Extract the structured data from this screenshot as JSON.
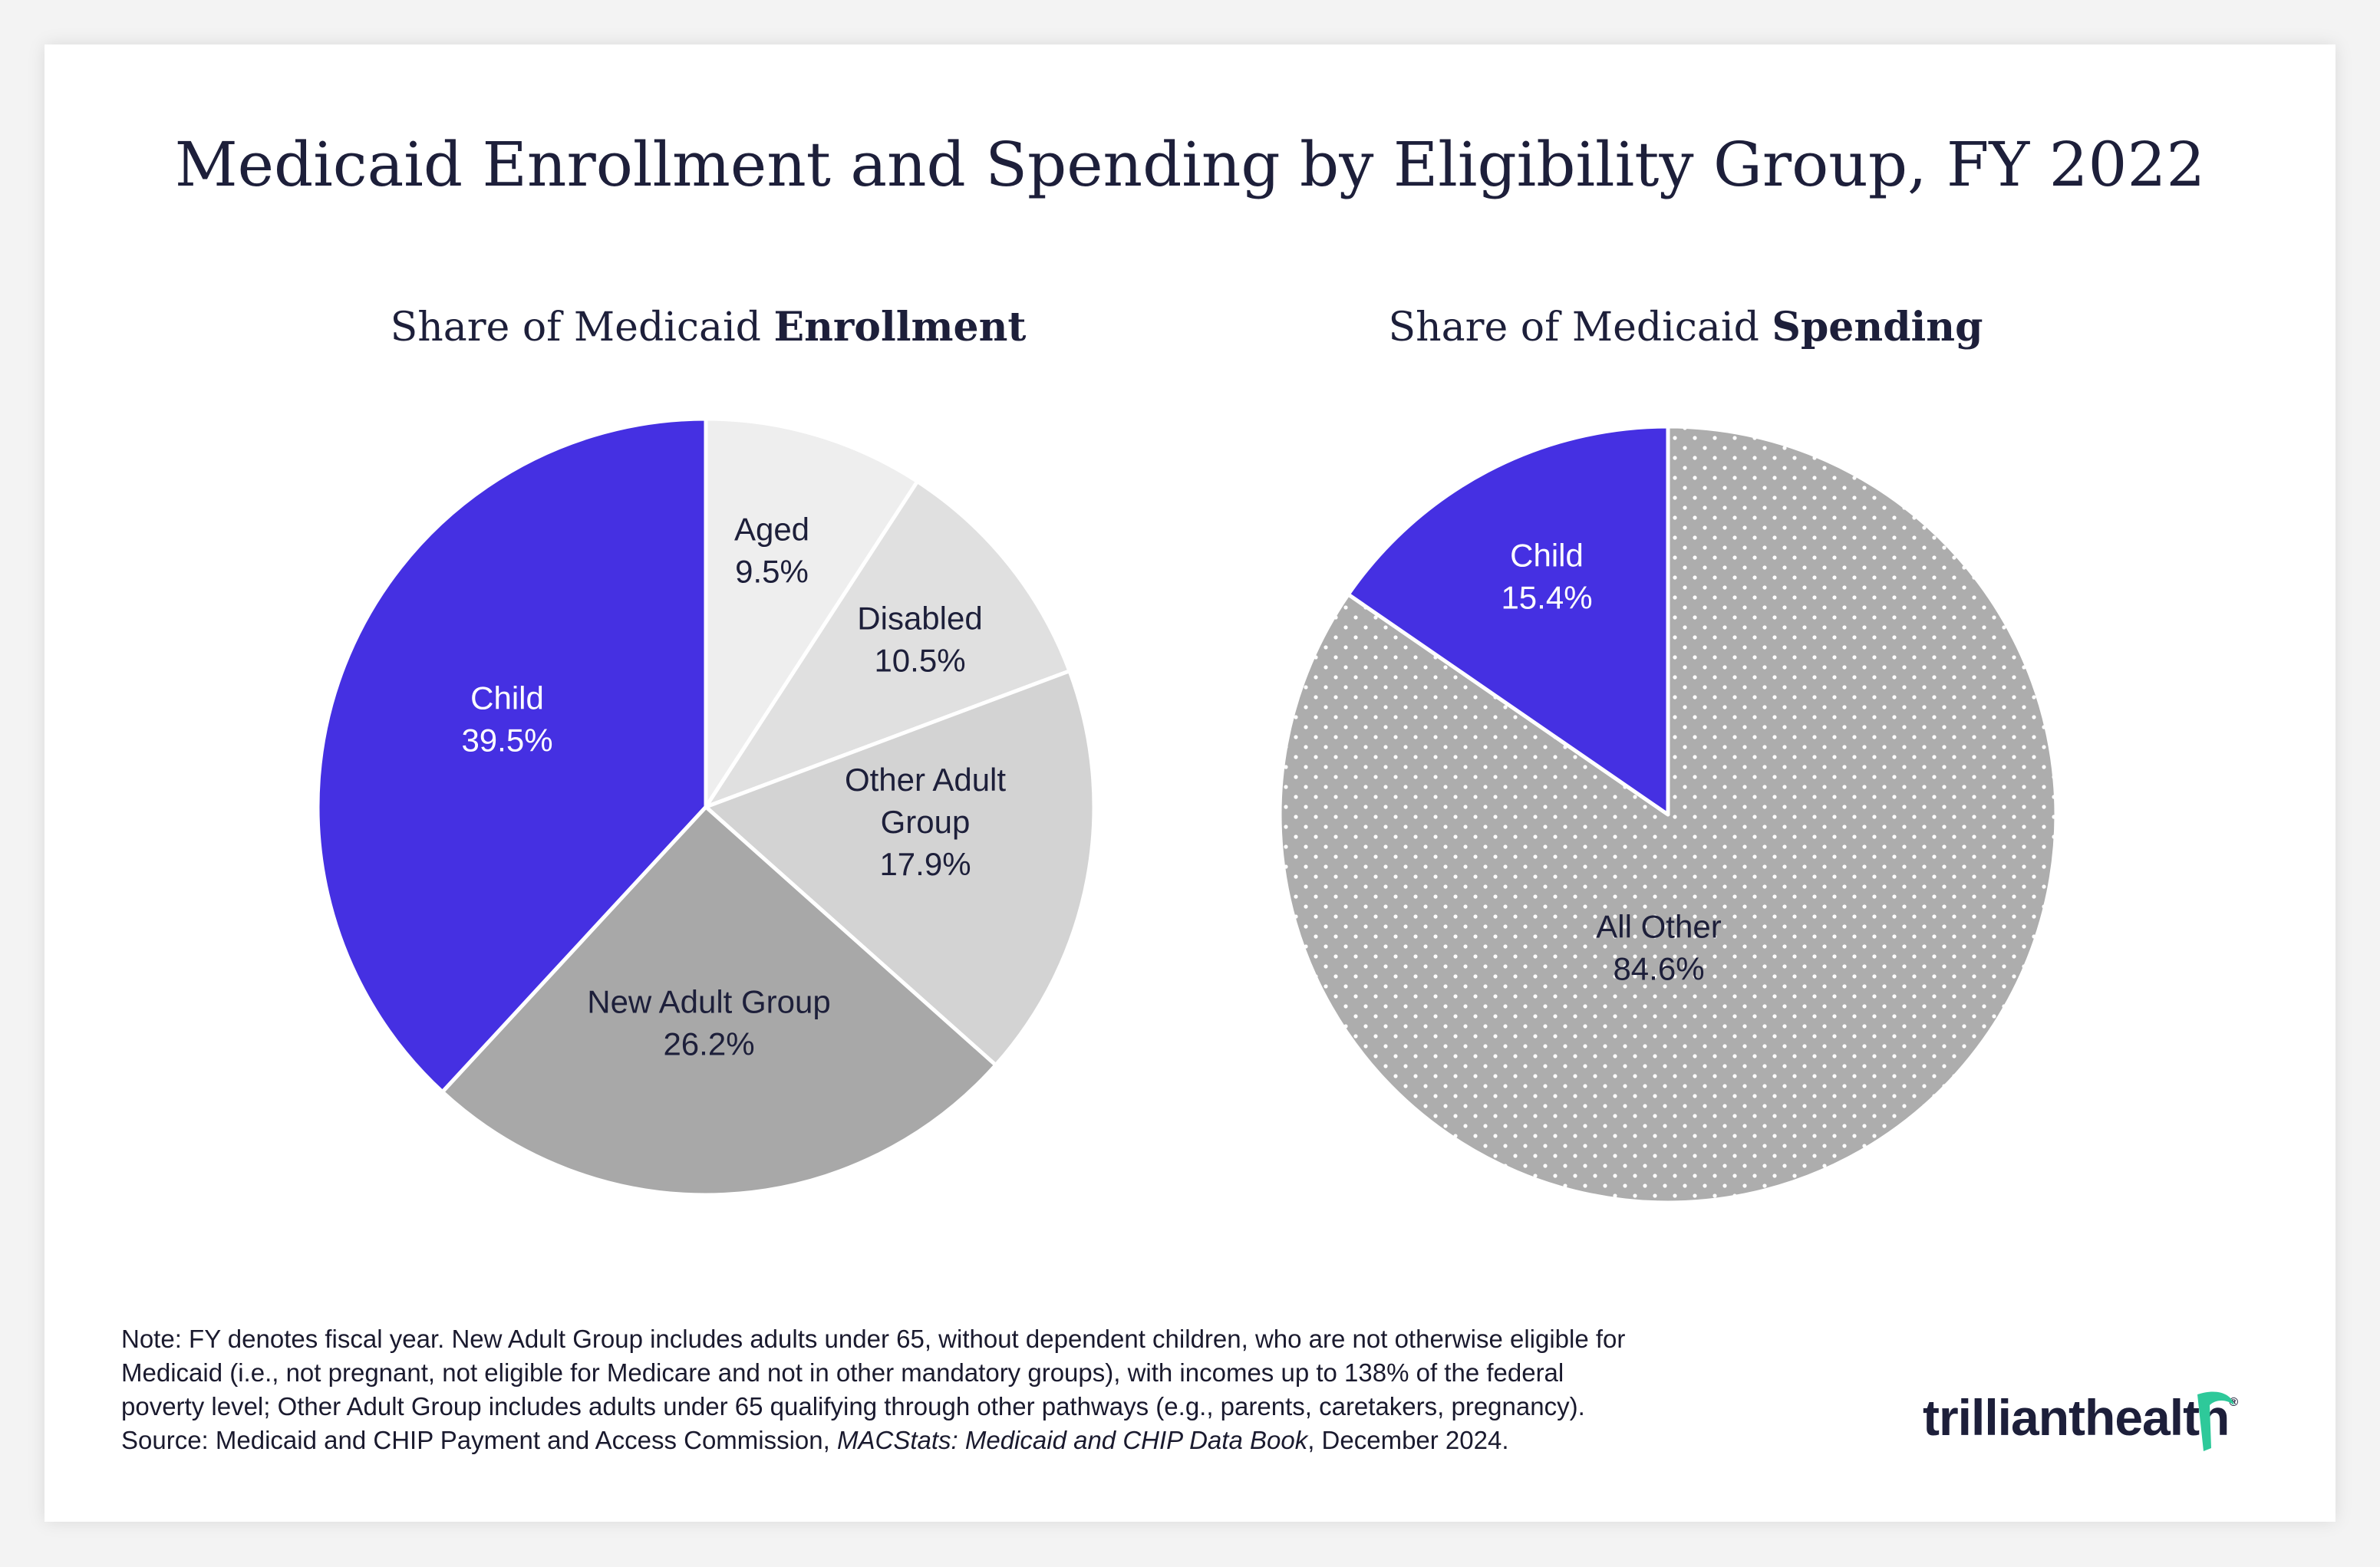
{
  "title": "Medicaid Enrollment and Spending by Eligibility Group, FY 2022",
  "colors": {
    "child": "#4530e2",
    "aged": "#eeeeee",
    "disabled": "#e0e0e0",
    "other_adult": "#d3d3d3",
    "new_adult": "#a8a8a8",
    "all_other": "#adadad",
    "dots": "#ffffff",
    "text_dark": "#1d1f3a",
    "text_light": "#ffffff",
    "logo_accent": "#2ec99a"
  },
  "chart_data": [
    {
      "type": "pie",
      "title_prefix": "Share of Medicaid ",
      "title_bold": "Enrollment",
      "start": "12 o'clock",
      "direction": "clockwise",
      "slices": [
        {
          "name": "Aged",
          "label_lines": [
            "Aged"
          ],
          "value_label": "9.5%",
          "value": 9.5,
          "color": "#eeeeee",
          "text_color": "#1d1f3a"
        },
        {
          "name": "Disabled",
          "label_lines": [
            "Disabled"
          ],
          "value_label": "10.5%",
          "value": 10.5,
          "color": "#e0e0e0",
          "text_color": "#1d1f3a"
        },
        {
          "name": "Other Adult Group",
          "label_lines": [
            "Other Adult",
            "Group"
          ],
          "value_label": "17.9%",
          "value": 17.9,
          "color": "#d3d3d3",
          "text_color": "#1d1f3a"
        },
        {
          "name": "New Adult Group",
          "label_lines": [
            "New Adult Group"
          ],
          "value_label": "26.2%",
          "value": 26.2,
          "color": "#a8a8a8",
          "text_color": "#1d1f3a"
        },
        {
          "name": "Child",
          "label_lines": [
            "Child"
          ],
          "value_label": "39.5%",
          "value": 39.5,
          "color": "#4530e2",
          "text_color": "#ffffff"
        }
      ]
    },
    {
      "type": "pie",
      "title_prefix": "Share of Medicaid ",
      "title_bold": "Spending",
      "start": "12 o'clock",
      "direction": "clockwise",
      "slices": [
        {
          "name": "All Other",
          "label_lines": [
            "All Other"
          ],
          "value_label": "84.6%",
          "value": 84.6,
          "color": "#adadad",
          "pattern": "dots",
          "text_color": "#1d1f3a"
        },
        {
          "name": "Child",
          "label_lines": [
            "Child"
          ],
          "value_label": "15.4%",
          "value": 15.4,
          "color": "#4530e2",
          "text_color": "#ffffff"
        }
      ]
    }
  ],
  "note": {
    "lines": [
      "Note: FY denotes fiscal year. New Adult Group includes adults under 65, without dependent children, who are not otherwise eligible for",
      "Medicaid (i.e., not pregnant, not eligible for Medicare and not in other mandatory groups), with incomes up to 138% of the federal",
      "poverty level; Other Adult Group includes adults under 65 qualifying through other pathways (e.g., parents, caretakers, pregnancy)."
    ],
    "source_prefix": "Source: Medicaid and CHIP Payment and Access Commission, ",
    "source_italic": "MACStats: Medicaid and CHIP Data Book",
    "source_suffix": ", December 2024."
  },
  "logo": {
    "part1": "trilliant",
    "part2": "health",
    "registered": "®"
  }
}
